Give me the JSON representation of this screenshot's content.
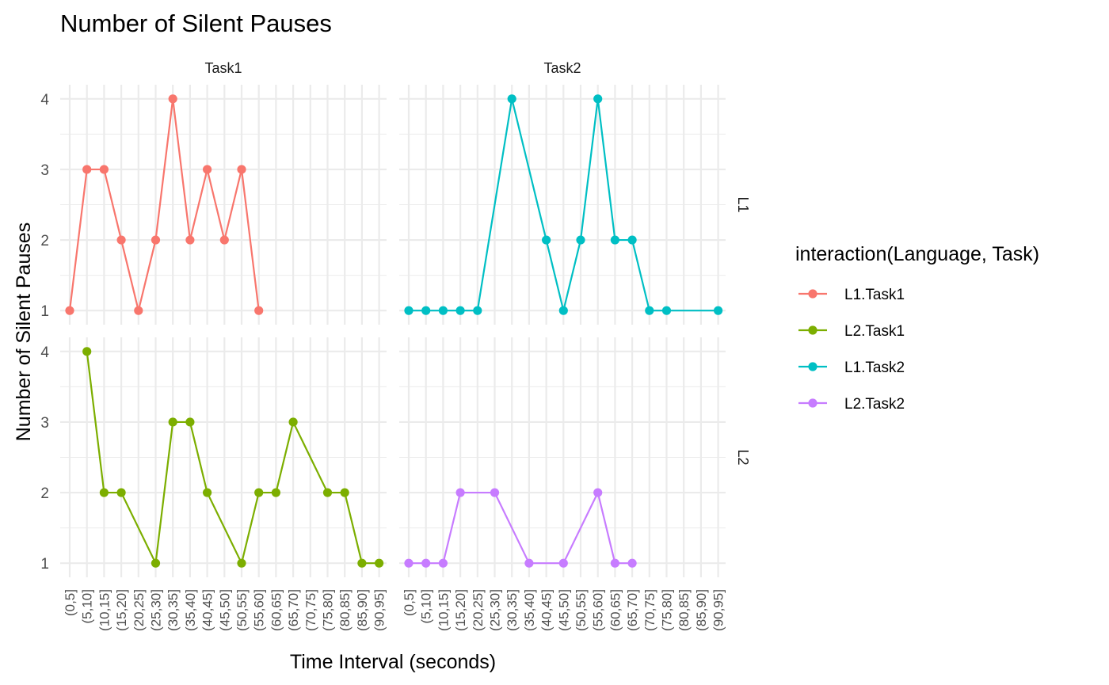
{
  "chart_data": {
    "type": "line",
    "title": "Number of Silent Pauses",
    "xlabel": "Time Interval (seconds)",
    "ylabel": "Number of Silent Pauses",
    "categories": [
      "(0,5]",
      "(5,10]",
      "(10,15]",
      "(15,20]",
      "(20,25]",
      "(25,30]",
      "(30,35]",
      "(35,40]",
      "(40,45]",
      "(45,50]",
      "(50,55]",
      "(55,60]",
      "(60,65]",
      "(65,70]",
      "(70,75]",
      "(75,80]",
      "(80,85]",
      "(85,90]",
      "(90,95]"
    ],
    "yticks": [
      1,
      2,
      3,
      4
    ],
    "ylim": [
      0.8,
      4.2
    ],
    "facet_columns": [
      "Task1",
      "Task2"
    ],
    "facet_rows": [
      "L1",
      "L2"
    ],
    "grid": true,
    "legend": {
      "title": "interaction(Language, Task)",
      "position": "right",
      "entries": [
        "L1.Task1",
        "L2.Task1",
        "L1.Task2",
        "L2.Task2"
      ]
    },
    "series": [
      {
        "name": "L1.Task1",
        "color": "#F8766D",
        "column": "Task1",
        "row": "L1",
        "x": [
          "(0,5]",
          "(5,10]",
          "(10,15]",
          "(15,20]",
          "(20,25]",
          "(25,30]",
          "(30,35]",
          "(35,40]",
          "(40,45]",
          "(45,50]",
          "(50,55]",
          "(55,60]"
        ],
        "y": [
          1,
          3,
          3,
          2,
          1,
          2,
          4,
          2,
          3,
          2,
          3,
          1
        ]
      },
      {
        "name": "L2.Task1",
        "color": "#7CAE00",
        "column": "Task1",
        "row": "L2",
        "x": [
          "(5,10]",
          "(10,15]",
          "(15,20]",
          "(25,30]",
          "(30,35]",
          "(35,40]",
          "(40,45]",
          "(50,55]",
          "(55,60]",
          "(60,65]",
          "(65,70]",
          "(75,80]",
          "(80,85]",
          "(85,90]",
          "(90,95]"
        ],
        "y": [
          4,
          2,
          2,
          1,
          3,
          3,
          2,
          1,
          2,
          2,
          3,
          2,
          2,
          1,
          1
        ]
      },
      {
        "name": "L1.Task2",
        "color": "#00BFC4",
        "column": "Task2",
        "row": "L1",
        "x": [
          "(0,5]",
          "(5,10]",
          "(10,15]",
          "(15,20]",
          "(20,25]",
          "(30,35]",
          "(40,45]",
          "(45,50]",
          "(50,55]",
          "(55,60]",
          "(60,65]",
          "(65,70]",
          "(70,75]",
          "(75,80]",
          "(90,95]"
        ],
        "y": [
          1,
          1,
          1,
          1,
          1,
          4,
          2,
          1,
          2,
          4,
          2,
          2,
          1,
          1,
          1
        ]
      },
      {
        "name": "L2.Task2",
        "color": "#C77CFF",
        "column": "Task2",
        "row": "L2",
        "x": [
          "(0,5]",
          "(5,10]",
          "(10,15]",
          "(15,20]",
          "(25,30]",
          "(35,40]",
          "(45,50]",
          "(55,60]",
          "(60,65]",
          "(65,70]"
        ],
        "y": [
          1,
          1,
          1,
          2,
          2,
          1,
          1,
          2,
          1,
          1
        ]
      }
    ]
  }
}
